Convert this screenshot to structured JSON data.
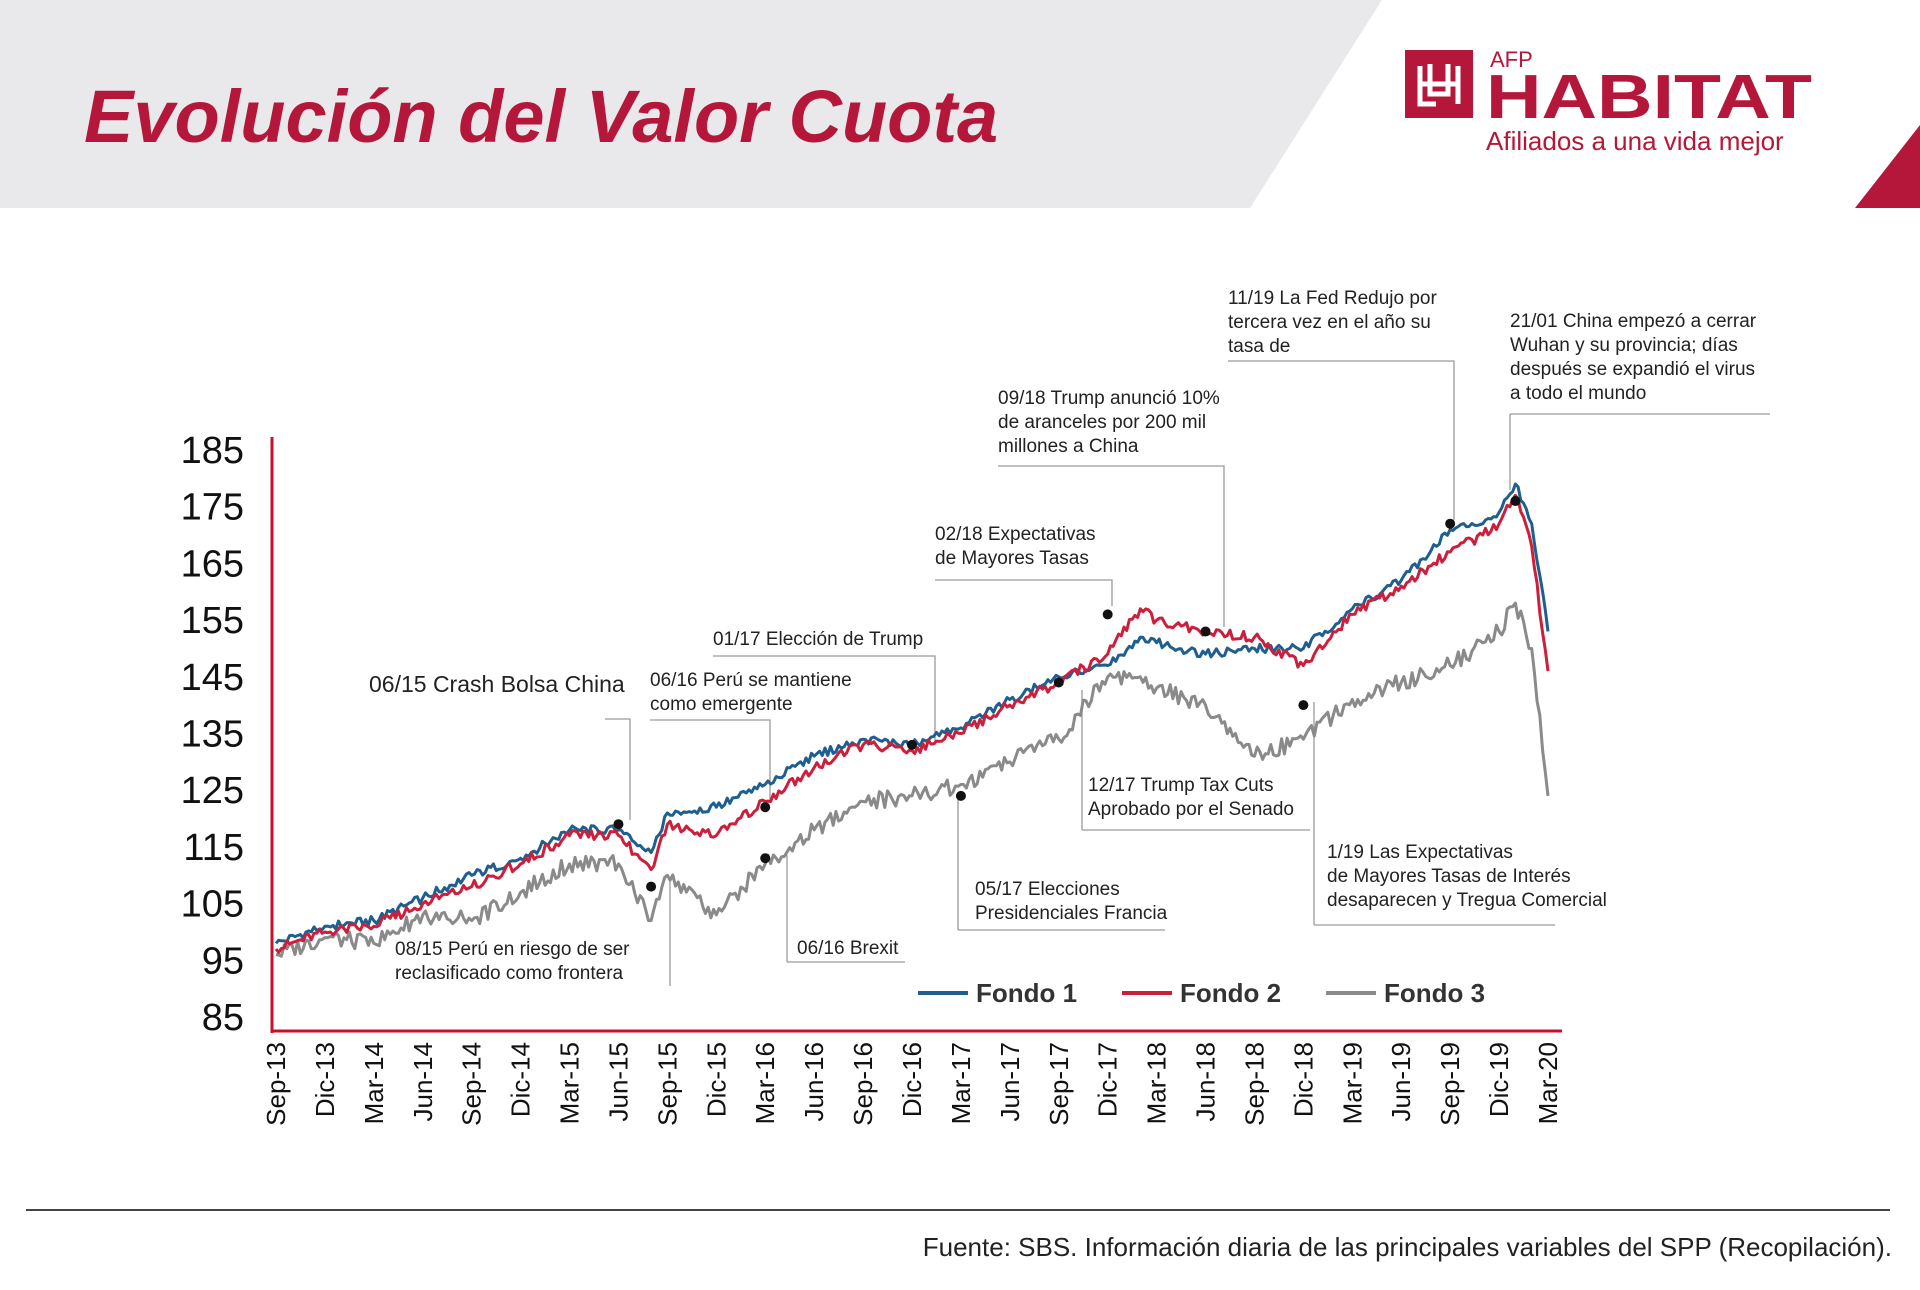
{
  "header": {
    "title": "Evolución del Valor Cuota",
    "brand": {
      "top": "AFP",
      "name": "HABITAT",
      "tagline": "Afiliados a una vida mejor"
    },
    "colors": {
      "band": "#e9e9ec",
      "accent": "#b5173a",
      "brand": "#b5173a"
    }
  },
  "chart_data": {
    "type": "line",
    "title": "",
    "xlabel": "",
    "ylabel": "",
    "ylim": [
      85,
      185
    ],
    "yticks": [
      185,
      175,
      165,
      155,
      145,
      135,
      125,
      115,
      105,
      95,
      85
    ],
    "x_tick_labels": [
      "Sep-13",
      "Dic-13",
      "Mar-14",
      "Jun-14",
      "Sep-14",
      "Dic-14",
      "Mar-15",
      "Jun-15",
      "Sep-15",
      "Dic-15",
      "Mar-16",
      "Jun-16",
      "Sep-16",
      "Dic-16",
      "Mar-17",
      "Jun-17",
      "Sep-17",
      "Dic-17",
      "Mar-18",
      "Jun-18",
      "Sep-18",
      "Dic-18",
      "Mar-19",
      "Jun-19",
      "Sep-19",
      "Dic-19",
      "Mar-20"
    ],
    "x": [
      "Sep-13",
      "Dic-13",
      "Mar-14",
      "Jun-14",
      "Sep-14",
      "Dic-14",
      "Mar-15",
      "Jun-15",
      "Ago-15",
      "Sep-15",
      "Dic-15",
      "Mar-16",
      "Jun-16",
      "Sep-16",
      "Dic-16",
      "Mar-17",
      "Jun-17",
      "Sep-17",
      "Dic-17",
      "Feb-18",
      "Mar-18",
      "Jun-18",
      "Sep-18",
      "Dic-18",
      "Mar-19",
      "Jun-19",
      "Sep-19",
      "Nov-19",
      "Dic-19",
      "Ene-20",
      "Feb-20",
      "Mar-20"
    ],
    "series": [
      {
        "name": "Fondo 1",
        "color": "#1f5f8f",
        "values": [
          98,
          101,
          102,
          106,
          110,
          113,
          118,
          118,
          114,
          121,
          122,
          126,
          131,
          134,
          133,
          136,
          141,
          145,
          147,
          152,
          151,
          149,
          150,
          150,
          157,
          162,
          171,
          172,
          174,
          179,
          172,
          153
        ]
      },
      {
        "name": "Fondo 2",
        "color": "#cc1f3c",
        "values": [
          97,
          100,
          101,
          105,
          108,
          112,
          117,
          117,
          111,
          119,
          117,
          123,
          129,
          133,
          132,
          135,
          140,
          144,
          149,
          157,
          155,
          153,
          152,
          147,
          156,
          161,
          167,
          170,
          172,
          177,
          168,
          146
        ]
      },
      {
        "name": "Fondo 3",
        "color": "#8a8a8a",
        "values": [
          96,
          99,
          98,
          103,
          102,
          107,
          112,
          112,
          102,
          110,
          103,
          112,
          118,
          123,
          124,
          126,
          130,
          134,
          145,
          145,
          143,
          140,
          131,
          134,
          141,
          144,
          147,
          151,
          153,
          158,
          150,
          124
        ]
      }
    ],
    "legend": {
      "placement": "bottom-right",
      "entries": [
        "Fondo 1",
        "Fondo 2",
        "Fondo 3"
      ]
    },
    "grid": false,
    "annotations": [
      {
        "text": [
          "06/15 Crash Bolsa China"
        ],
        "x": "Jun-15",
        "y": 119
      },
      {
        "text": [
          "08/15 Perú en riesgo de ser",
          "reclasificado como frontera"
        ],
        "x": "Ago-15",
        "y": 108
      },
      {
        "text": [
          "06/16 Perú se mantiene",
          "como emergente"
        ],
        "x": "Mar-16",
        "y": 122
      },
      {
        "text": [
          "06/16 Brexit"
        ],
        "x": "Mar-16",
        "y": 113
      },
      {
        "text": [
          "01/17 Elección de Trump"
        ],
        "x": "Dic-16",
        "y": 133
      },
      {
        "text": [
          "05/17 Elecciones",
          "Presidenciales Francia"
        ],
        "x": "Mar-17",
        "y": 124
      },
      {
        "text": [
          "12/17 Trump Tax Cuts",
          "Aprobado por el Senado"
        ],
        "x": "Sep-17",
        "y": 144
      },
      {
        "text": [
          "02/18 Expectativas",
          "de Mayores Tasas"
        ],
        "x": "Dic-17",
        "y": 156
      },
      {
        "text": [
          "09/18 Trump anunció 10%",
          "de aranceles por 200 mil",
          "millones a China"
        ],
        "x": "Jun-18",
        "y": 153
      },
      {
        "text": [
          "1/19 Las Expectativas",
          "de Mayores Tasas de Interés",
          "desaparecen y Tregua Comercial"
        ],
        "x": "Dic-18",
        "y": 140
      },
      {
        "text": [
          "11/19 La Fed Redujo por",
          "tercera vez en el año su",
          "tasa de"
        ],
        "x": "Sep-19",
        "y": 172
      },
      {
        "text": [
          "21/01 China empezó a cerrar",
          "Wuhan y su provincia; días",
          "después se expandió el virus",
          "a todo el mundo"
        ],
        "x": "Ene-20",
        "y": 176
      }
    ]
  },
  "footer": {
    "source": "Fuente: SBS. Información diaria de las principales variables del SPP (Recopilación)."
  }
}
